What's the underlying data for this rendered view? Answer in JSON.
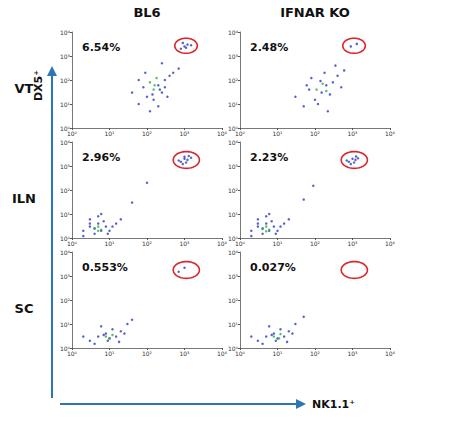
{
  "columns": [
    "BL6",
    "IFNAR KO"
  ],
  "rows": [
    "VT",
    "ILN",
    "SC"
  ],
  "xlabel": "NK1.1⁺",
  "ylabel": "DX5⁺",
  "chart_data": [
    {
      "type": "scatter",
      "log": true,
      "grid": false,
      "annotation": "6.54%",
      "xlim": [
        1,
        10000
      ],
      "ylim": [
        1,
        10000
      ],
      "xticks": [
        {
          "value": 1,
          "label": "10⁰"
        },
        {
          "value": 10,
          "label": "10¹"
        },
        {
          "value": 100,
          "label": "10²"
        },
        {
          "value": 1000,
          "label": "10³"
        },
        {
          "value": 10000,
          "label": "10⁴"
        }
      ],
      "yticks": [
        {
          "value": 1,
          "label": "10⁰"
        },
        {
          "value": 10,
          "label": "10¹"
        },
        {
          "value": 100,
          "label": "10²"
        },
        {
          "value": 1000,
          "label": "10³"
        },
        {
          "value": 10000,
          "label": "10⁴"
        }
      ],
      "gate": {
        "x": [
          550,
          2200
        ],
        "y": [
          1300,
          5500
        ]
      },
      "series": [
        {
          "color": "#2c3cc0",
          "x": [
            40,
            60,
            80,
            100,
            200,
            250,
            300,
            400,
            500,
            700,
            150,
            200,
            120,
            90,
            300,
            250,
            60,
            350,
            220,
            1000,
            1200,
            800,
            1500,
            900,
            1100,
            140
          ],
          "values": [
            30,
            10,
            50,
            20,
            60,
            30,
            100,
            150,
            200,
            300,
            15,
            8,
            5,
            200,
            50,
            500,
            100,
            20,
            40,
            2500,
            3000,
            2000,
            2800,
            3500,
            2200,
            25
          ]
        },
        {
          "color": "#2fae3e",
          "x": [
            120,
            150,
            180,
            160
          ],
          "values": [
            80,
            40,
            120,
            60
          ]
        }
      ]
    },
    {
      "type": "scatter",
      "log": true,
      "grid": false,
      "annotation": "2.48%",
      "xlim": [
        1,
        10000
      ],
      "ylim": [
        1,
        10000
      ],
      "xticks": [
        {
          "value": 1,
          "label": "10⁰"
        },
        {
          "value": 10,
          "label": "10¹"
        },
        {
          "value": 100,
          "label": "10²"
        },
        {
          "value": 1000,
          "label": "10³"
        },
        {
          "value": 10000,
          "label": "10⁴"
        }
      ],
      "yticks": [
        {
          "value": 1,
          "label": "10⁰"
        },
        {
          "value": 10,
          "label": "10¹"
        },
        {
          "value": 100,
          "label": "10²"
        },
        {
          "value": 1000,
          "label": "10³"
        },
        {
          "value": 10000,
          "label": "10⁴"
        }
      ],
      "gate": {
        "x": [
          550,
          2200
        ],
        "y": [
          1300,
          5500
        ]
      },
      "series": [
        {
          "color": "#2c3cc0",
          "x": [
            30,
            50,
            70,
            100,
            150,
            200,
            300,
            400,
            600,
            120,
            180,
            250,
            80,
            500,
            350,
            60,
            220,
            140,
            900,
            1300
          ],
          "values": [
            20,
            8,
            40,
            15,
            30,
            60,
            80,
            150,
            250,
            10,
            200,
            25,
            120,
            50,
            400,
            60,
            5,
            90,
            2500,
            3200
          ]
        },
        {
          "color": "#2fae3e",
          "x": [
            110,
            160,
            200
          ],
          "values": [
            40,
            70,
            35
          ]
        }
      ]
    },
    {
      "type": "scatter",
      "log": true,
      "grid": false,
      "annotation": "2.96%",
      "xlim": [
        1,
        10000
      ],
      "ylim": [
        1,
        10000
      ],
      "xticks": [
        {
          "value": 1,
          "label": "10⁰"
        },
        {
          "value": 10,
          "label": "10¹"
        },
        {
          "value": 100,
          "label": "10²"
        },
        {
          "value": 1000,
          "label": "10³"
        },
        {
          "value": 10000,
          "label": "10⁴"
        }
      ],
      "yticks": [
        {
          "value": 1,
          "label": "10⁰"
        },
        {
          "value": 10,
          "label": "10¹"
        },
        {
          "value": 100,
          "label": "10²"
        },
        {
          "value": 1000,
          "label": "10³"
        },
        {
          "value": 10000,
          "label": "10⁴"
        }
      ],
      "gate": {
        "x": [
          500,
          2500
        ],
        "y": [
          800,
          4000
        ]
      },
      "series": [
        {
          "color": "#2c3cc0",
          "x": [
            2,
            3,
            4,
            5,
            6,
            8,
            10,
            3,
            5,
            7,
            12,
            2,
            4,
            9,
            15,
            20,
            6,
            3,
            800,
            1000,
            1200,
            900,
            1500,
            1100,
            700,
            1300,
            1000,
            40,
            100
          ],
          "values": [
            2,
            3,
            1.5,
            4,
            2,
            3,
            2,
            6,
            8,
            5,
            3,
            1.2,
            2.5,
            1.5,
            4,
            6,
            10,
            4,
            1500,
            2000,
            1800,
            1200,
            2200,
            1400,
            1700,
            2600,
            2400,
            30,
            200
          ]
        },
        {
          "color": "#2fae3e",
          "x": [
            4,
            5,
            6,
            5
          ],
          "values": [
            2.5,
            3,
            2.2,
            2
          ]
        }
      ]
    },
    {
      "type": "scatter",
      "log": true,
      "grid": false,
      "annotation": "2.23%",
      "xlim": [
        1,
        10000
      ],
      "ylim": [
        1,
        10000
      ],
      "xticks": [
        {
          "value": 1,
          "label": "10⁰"
        },
        {
          "value": 10,
          "label": "10¹"
        },
        {
          "value": 100,
          "label": "10²"
        },
        {
          "value": 1000,
          "label": "10³"
        },
        {
          "value": 10000,
          "label": "10⁴"
        }
      ],
      "yticks": [
        {
          "value": 1,
          "label": "10⁰"
        },
        {
          "value": 10,
          "label": "10¹"
        },
        {
          "value": 100,
          "label": "10²"
        },
        {
          "value": 1000,
          "label": "10³"
        },
        {
          "value": 10000,
          "label": "10⁴"
        }
      ],
      "gate": {
        "x": [
          500,
          2500
        ],
        "y": [
          800,
          4000
        ]
      },
      "series": [
        {
          "color": "#2c3cc0",
          "x": [
            2,
            3,
            4,
            5,
            6,
            8,
            10,
            3,
            5,
            7,
            12,
            2,
            4,
            9,
            15,
            20,
            6,
            3,
            800,
            1000,
            1200,
            900,
            1400,
            1100,
            700,
            1250,
            50,
            90
          ],
          "values": [
            2,
            3,
            1.5,
            4,
            2,
            3,
            2,
            6,
            8,
            5,
            3,
            1.2,
            2.5,
            1.5,
            4,
            6,
            10,
            4,
            1500,
            2000,
            1800,
            1200,
            2100,
            1400,
            1700,
            2500,
            40,
            150
          ]
        },
        {
          "color": "#2fae3e",
          "x": [
            4,
            5,
            6,
            5
          ],
          "values": [
            2.4,
            3,
            2.2,
            1.9
          ]
        }
      ]
    },
    {
      "type": "scatter",
      "log": true,
      "grid": false,
      "annotation": "0.553%",
      "xlim": [
        1,
        10000
      ],
      "ylim": [
        1,
        10000
      ],
      "xticks": [
        {
          "value": 1,
          "label": "10⁰"
        },
        {
          "value": 10,
          "label": "10¹"
        },
        {
          "value": 100,
          "label": "10²"
        },
        {
          "value": 1000,
          "label": "10³"
        },
        {
          "value": 10000,
          "label": "10⁴"
        }
      ],
      "yticks": [
        {
          "value": 1,
          "label": "10⁰"
        },
        {
          "value": 10,
          "label": "10¹"
        },
        {
          "value": 100,
          "label": "10²"
        },
        {
          "value": 1000,
          "label": "10³"
        },
        {
          "value": 10000,
          "label": "10⁴"
        }
      ],
      "gate": {
        "x": [
          500,
          2500
        ],
        "y": [
          800,
          4000
        ]
      },
      "series": [
        {
          "color": "#2c3cc0",
          "x": [
            3,
            5,
            8,
            10,
            15,
            20,
            6,
            4,
            12,
            25,
            30,
            9,
            7,
            18,
            2,
            40,
            700,
            1000
          ],
          "values": [
            2,
            3,
            4,
            2.5,
            3,
            5,
            8,
            1.5,
            6,
            4,
            10,
            2,
            3.5,
            1.8,
            3,
            15,
            1500,
            2200
          ]
        },
        {
          "color": "#2fae3e",
          "x": [
            8,
            10,
            12
          ],
          "values": [
            3,
            2.5,
            3.5
          ]
        }
      ]
    },
    {
      "type": "scatter",
      "log": true,
      "grid": false,
      "annotation": "0.027%",
      "xlim": [
        1,
        10000
      ],
      "ylim": [
        1,
        10000
      ],
      "xticks": [
        {
          "value": 1,
          "label": "10⁰"
        },
        {
          "value": 10,
          "label": "10¹"
        },
        {
          "value": 100,
          "label": "10²"
        },
        {
          "value": 1000,
          "label": "10³"
        },
        {
          "value": 10000,
          "label": "10⁴"
        }
      ],
      "yticks": [
        {
          "value": 1,
          "label": "10⁰"
        },
        {
          "value": 10,
          "label": "10¹"
        },
        {
          "value": 100,
          "label": "10²"
        },
        {
          "value": 1000,
          "label": "10³"
        },
        {
          "value": 10000,
          "label": "10⁴"
        }
      ],
      "gate": {
        "x": [
          500,
          2500
        ],
        "y": [
          800,
          4000
        ]
      },
      "series": [
        {
          "color": "#2c3cc0",
          "x": [
            3,
            5,
            8,
            10,
            15,
            20,
            6,
            4,
            12,
            25,
            30,
            9,
            7,
            18,
            2,
            50
          ],
          "values": [
            2,
            3,
            4,
            2.5,
            3,
            5,
            8,
            1.5,
            6,
            4,
            10,
            2,
            3.5,
            1.8,
            3,
            20
          ]
        },
        {
          "color": "#2fae3e",
          "x": [
            8,
            11,
            12
          ],
          "values": [
            3,
            2.5,
            3.8
          ]
        }
      ]
    }
  ]
}
